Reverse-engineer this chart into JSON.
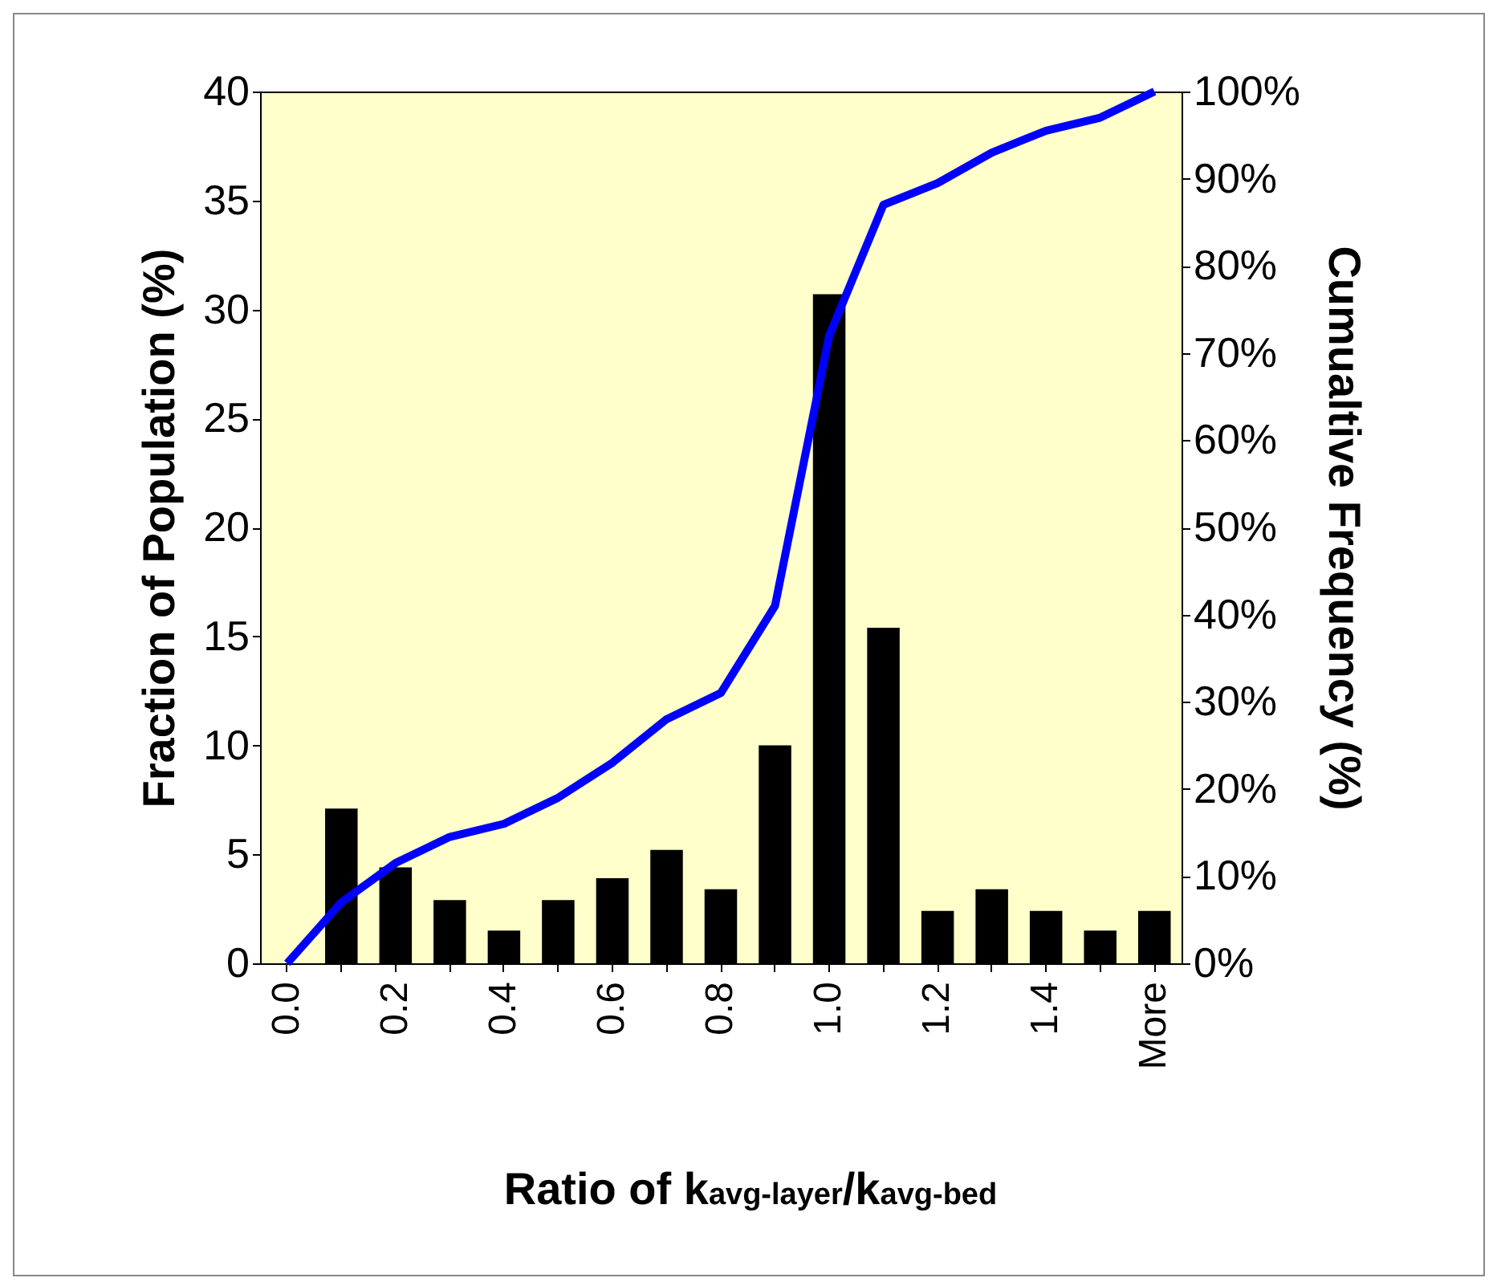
{
  "chart_data": {
    "type": "bar",
    "xlabel": "Ratio of k$_{avg-layer}$/k$_{avg-bed}$",
    "ylabel": "Fraction of Population (%)",
    "y2label": "Cumualtive Frequency (%)",
    "categories": [
      "0.0",
      null,
      "0.2",
      null,
      "0.4",
      null,
      "0.6",
      null,
      "0.8",
      null,
      "1.0",
      null,
      "1.2",
      null,
      "1.4",
      null,
      "More"
    ],
    "series": [
      {
        "color": "#000000",
        "values": [
          0,
          7.1,
          4.4,
          2.9,
          1.5,
          2.9,
          3.9,
          5.2,
          3.4,
          10.0,
          30.7,
          15.4,
          2.4,
          3.4,
          2.4,
          1.5,
          2.4
        ]
      },
      {
        "type": "line",
        "axis": "y2",
        "color": "#0000ff",
        "values": [
          0,
          7,
          11.5,
          14.5,
          16,
          19,
          23,
          28,
          31,
          41,
          72,
          87,
          89.5,
          93,
          95.5,
          97,
          100
        ]
      }
    ],
    "ylim": [
      0,
      40
    ],
    "yticks": [
      0,
      5,
      10,
      15,
      20,
      25,
      30,
      35,
      40
    ],
    "y2lim": [
      0,
      100
    ],
    "y2ticks": [
      {
        "value": 0,
        "label": "0%"
      },
      {
        "value": 10,
        "label": "10%"
      },
      {
        "value": 20,
        "label": "20%"
      },
      {
        "value": 30,
        "label": "30%"
      },
      {
        "value": 40,
        "label": "40%"
      },
      {
        "value": 50,
        "label": "50%"
      },
      {
        "value": 60,
        "label": "60%"
      },
      {
        "value": 70,
        "label": "70%"
      },
      {
        "value": 80,
        "label": "80%"
      },
      {
        "value": 90,
        "label": "90%"
      },
      {
        "value": 100,
        "label": "100%"
      }
    ],
    "grid": false
  }
}
